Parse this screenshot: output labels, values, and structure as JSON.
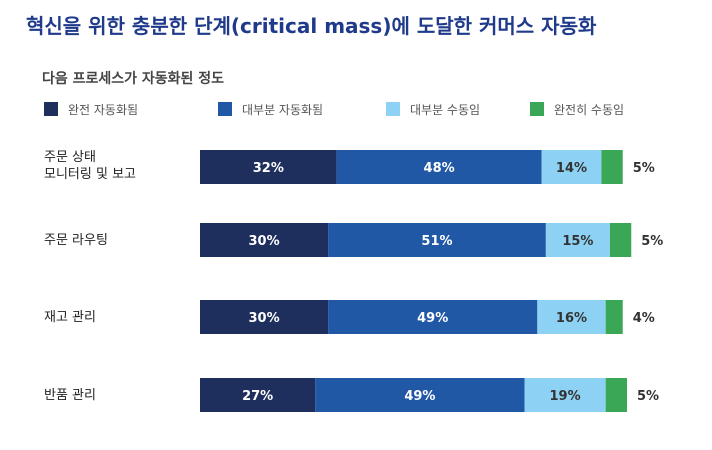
{
  "title": "혁신을 위한 충분한 단계(critical mass)에 도달한 커머스 자동화",
  "chart_data": {
    "type": "bar",
    "orientation": "horizontal",
    "stacked": true,
    "subtitle": "다음 프로세스가 자동화된 정도",
    "categories": [
      "주문 상태\n모니터링 및 보고",
      "주문 라우팅",
      "재고 관리",
      "반품 관리"
    ],
    "series": [
      {
        "name": "완전 자동화됨",
        "color": "#1e2f5e",
        "label_color": "#ffffff",
        "values": [
          32,
          30,
          30,
          27
        ]
      },
      {
        "name": "대부분 자동화됨",
        "color": "#2058a6",
        "label_color": "#ffffff",
        "values": [
          48,
          51,
          49,
          49
        ]
      },
      {
        "name": "대부분 수동임",
        "color": "#8dd2f4",
        "label_color": "#333333",
        "values": [
          14,
          15,
          16,
          19
        ]
      },
      {
        "name": "완전히 수동임",
        "color": "#3aa757",
        "label_color": "#333333",
        "values": [
          5,
          5,
          4,
          5
        ]
      }
    ],
    "value_suffix": "%",
    "xlim": [
      0,
      100
    ],
    "legend_position": "top",
    "grid": false
  }
}
